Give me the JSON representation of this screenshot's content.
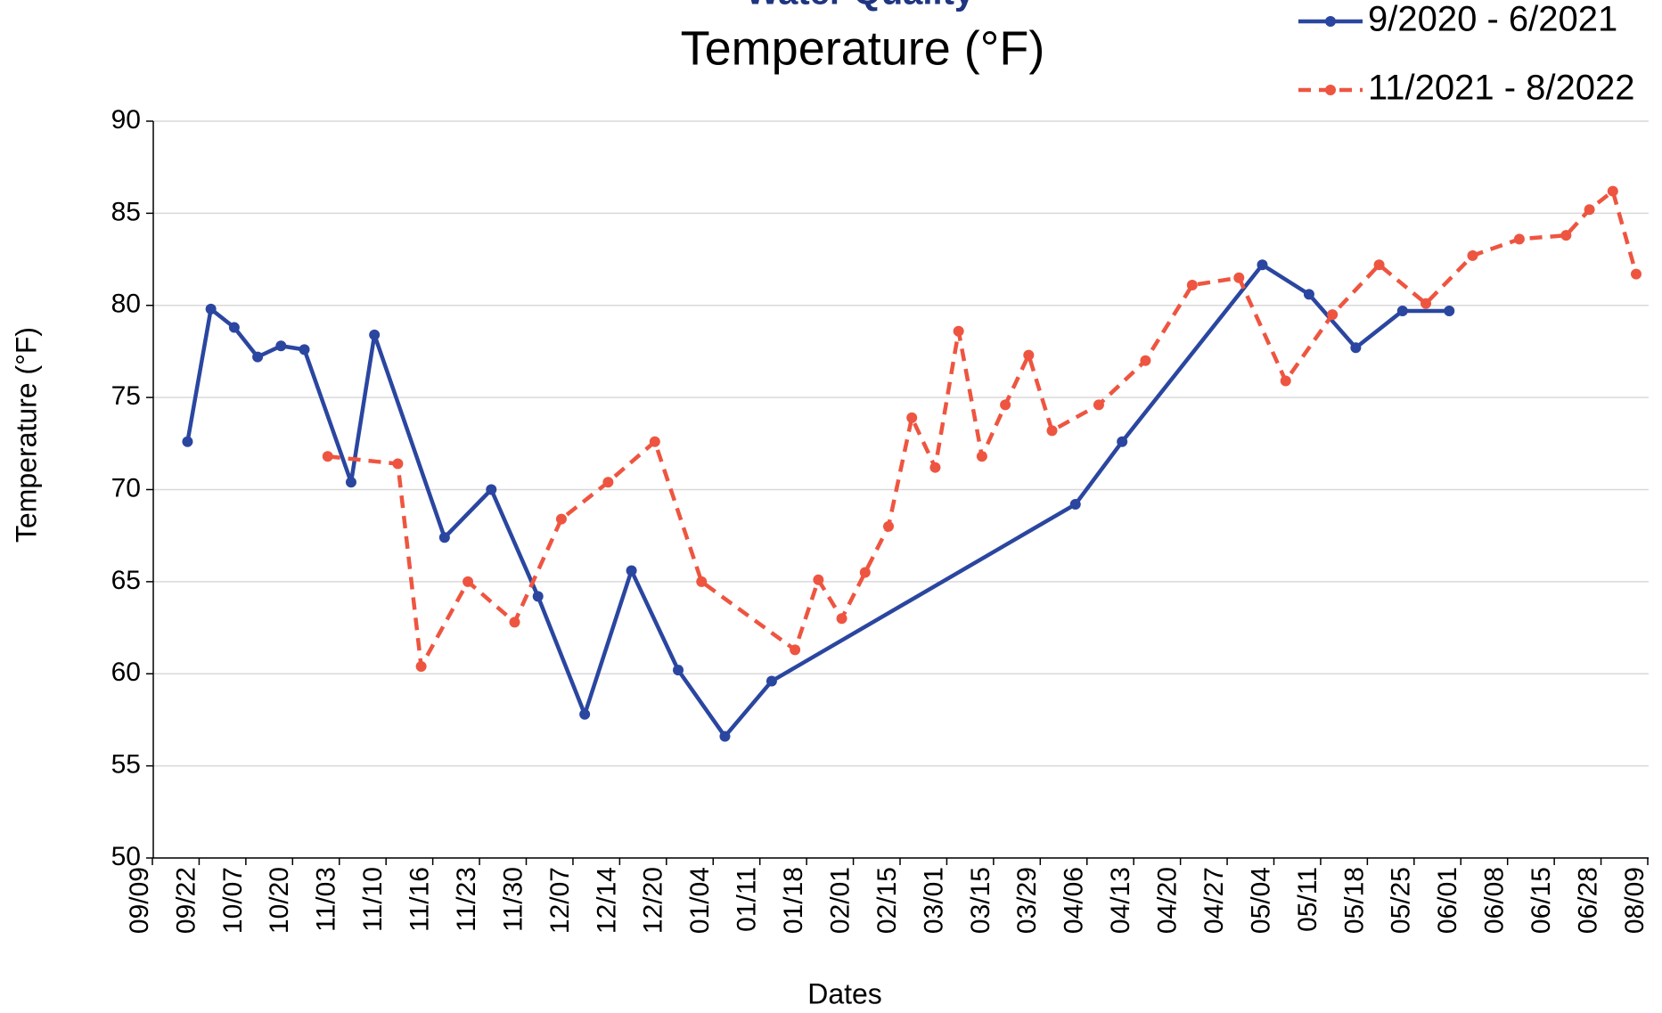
{
  "chart_data": {
    "type": "line",
    "supertitle": "Water Quality",
    "title": "Temperature (°F)",
    "x_label": "Dates",
    "y_label": "Temperature (°F)",
    "categories": [
      "09/09",
      null,
      "09/22",
      null,
      "10/07",
      null,
      "10/20",
      null,
      "11/03",
      null,
      "11/10",
      null,
      "11/16",
      null,
      "11/23",
      null,
      "11/30",
      null,
      "12/07",
      null,
      "12/14",
      null,
      "12/20",
      null,
      "01/04",
      null,
      "01/11",
      null,
      "01/18",
      null,
      "02/01",
      null,
      "02/15",
      null,
      "03/01",
      null,
      "03/15",
      null,
      "03/29",
      null,
      "04/06",
      null,
      "04/13",
      null,
      "04/20",
      null,
      "04/27",
      null,
      "05/04",
      null,
      "05/11",
      null,
      "05/18",
      null,
      "05/25",
      null,
      "06/01",
      null,
      "06/08",
      null,
      "06/15",
      null,
      "06/28",
      null,
      "08/09"
    ],
    "series": [
      {
        "name": "9/2020 - 6/2021",
        "color": "#2a46a0",
        "dash": false,
        "values": [
          null,
          null,
          72.6,
          79.8,
          78.8,
          77.2,
          77.8,
          77.6,
          null,
          70.4,
          78.4,
          null,
          null,
          67.4,
          null,
          70.0,
          null,
          64.2,
          null,
          57.8,
          null,
          65.6,
          null,
          60.2,
          null,
          56.6,
          null,
          59.6,
          null,
          null,
          null,
          null,
          null,
          null,
          null,
          null,
          null,
          null,
          null,
          null,
          69.2,
          null,
          72.6,
          null,
          null,
          null,
          null,
          null,
          82.2,
          null,
          80.6,
          null,
          77.7,
          null,
          79.7,
          null,
          79.7,
          null,
          null,
          null,
          null,
          null,
          null,
          null,
          null
        ]
      },
      {
        "name": "11/2021 - 8/2022",
        "color": "#ee5540",
        "dash": true,
        "values": [
          null,
          null,
          null,
          null,
          null,
          null,
          null,
          null,
          71.8,
          null,
          null,
          71.4,
          60.4,
          null,
          65.0,
          null,
          62.8,
          null,
          68.4,
          null,
          70.4,
          null,
          72.6,
          null,
          65.0,
          null,
          null,
          null,
          61.3,
          65.1,
          63.0,
          65.5,
          68.0,
          73.9,
          71.2,
          78.6,
          71.8,
          74.6,
          77.3,
          73.2,
          null,
          74.6,
          null,
          77.0,
          null,
          81.1,
          null,
          81.5,
          null,
          75.9,
          null,
          79.5,
          null,
          82.2,
          null,
          80.1,
          null,
          82.7,
          null,
          83.6,
          null,
          83.8,
          85.2,
          86.2,
          81.7
        ]
      }
    ],
    "connect_gaps": true,
    "ylim": [
      50,
      90
    ],
    "yticks": [
      50,
      55,
      60,
      65,
      70,
      75,
      80,
      85,
      90
    ],
    "grid": true,
    "legend": "top-right"
  }
}
